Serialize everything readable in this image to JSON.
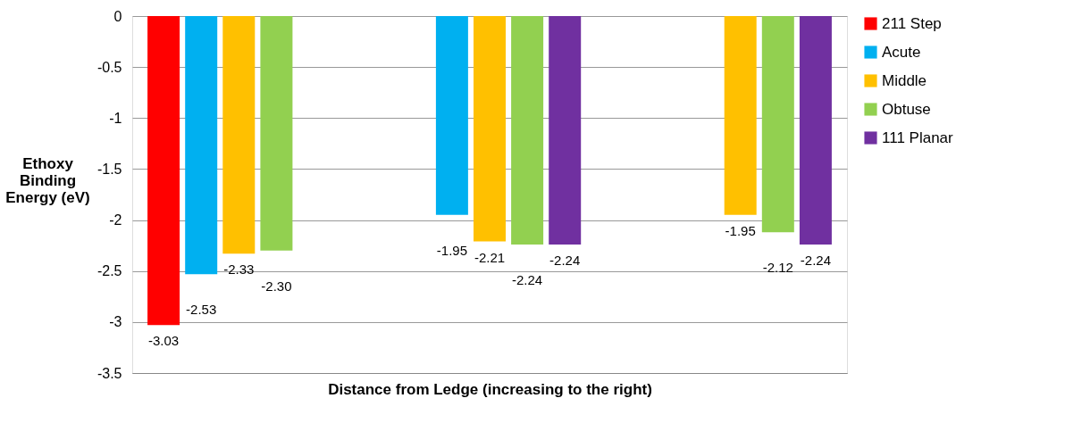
{
  "chart_data": {
    "type": "bar",
    "xlabel": "Distance from Ledge (increasing to the right)",
    "ylabel": "Ethoxy Binding Energy (eV)",
    "categories": [
      null,
      null,
      null
    ],
    "series": [
      {
        "name": "211 Step",
        "color": "#ff0000",
        "values": [
          -3.03,
          null,
          null
        ],
        "value_labels": [
          "-3.03",
          null,
          null
        ]
      },
      {
        "name": "Acute",
        "color": "#00b0f0",
        "values": [
          -2.53,
          -1.95,
          null
        ],
        "value_labels": [
          "-2.53",
          "-1.95",
          null
        ]
      },
      {
        "name": "Middle",
        "color": "#ffc000",
        "values": [
          -2.33,
          -2.21,
          -1.95
        ],
        "value_labels": [
          "-2.33",
          "-2.21",
          "-1.95"
        ]
      },
      {
        "name": "Obtuse",
        "color": "#92d050",
        "values": [
          -2.3,
          -2.24,
          -2.12
        ],
        "value_labels": [
          "-2.30",
          "-2.24",
          "-2.12"
        ]
      },
      {
        "name": "111 Planar",
        "color": "#7030a0",
        "values": [
          null,
          -2.24,
          -2.24
        ],
        "value_labels": [
          null,
          "-2.24",
          "-2.24"
        ]
      }
    ],
    "ylim": [
      -3.5,
      0
    ],
    "yticks": [
      0,
      -0.5,
      -1,
      -1.5,
      -2,
      -2.5,
      -3,
      -3.5
    ],
    "grid": "y",
    "legend": "right"
  }
}
